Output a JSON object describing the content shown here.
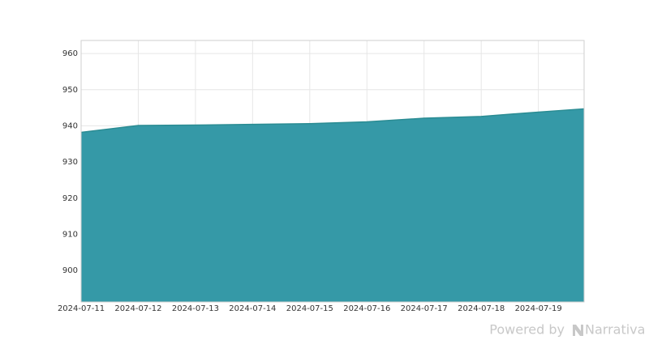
{
  "chart_data": {
    "type": "area",
    "x": [
      "2024-07-11",
      "2024-07-12",
      "2024-07-13",
      "2024-07-14",
      "2024-07-15",
      "2024-07-16",
      "2024-07-17",
      "2024-07-18",
      "2024-07-19",
      "2024-07-19T19:12"
    ],
    "values": [
      938.2,
      940.1,
      940.2,
      940.4,
      940.6,
      941.1,
      942.1,
      942.6,
      943.8,
      944.7
    ],
    "color": "#3599a7",
    "line_color": "#2b8c93",
    "xlim": [
      "2024-07-11",
      "2024-07-19T19:12"
    ],
    "xticks": [
      "2024-07-11",
      "2024-07-12",
      "2024-07-13",
      "2024-07-14",
      "2024-07-15",
      "2024-07-16",
      "2024-07-17",
      "2024-07-18",
      "2024-07-19"
    ],
    "ylim": [
      891.3,
      963.6
    ],
    "yticks": [
      900,
      910,
      920,
      930,
      940,
      950,
      960
    ],
    "grid": true
  },
  "footer": {
    "prefix": "Powered by",
    "brand": "Narrativa"
  }
}
